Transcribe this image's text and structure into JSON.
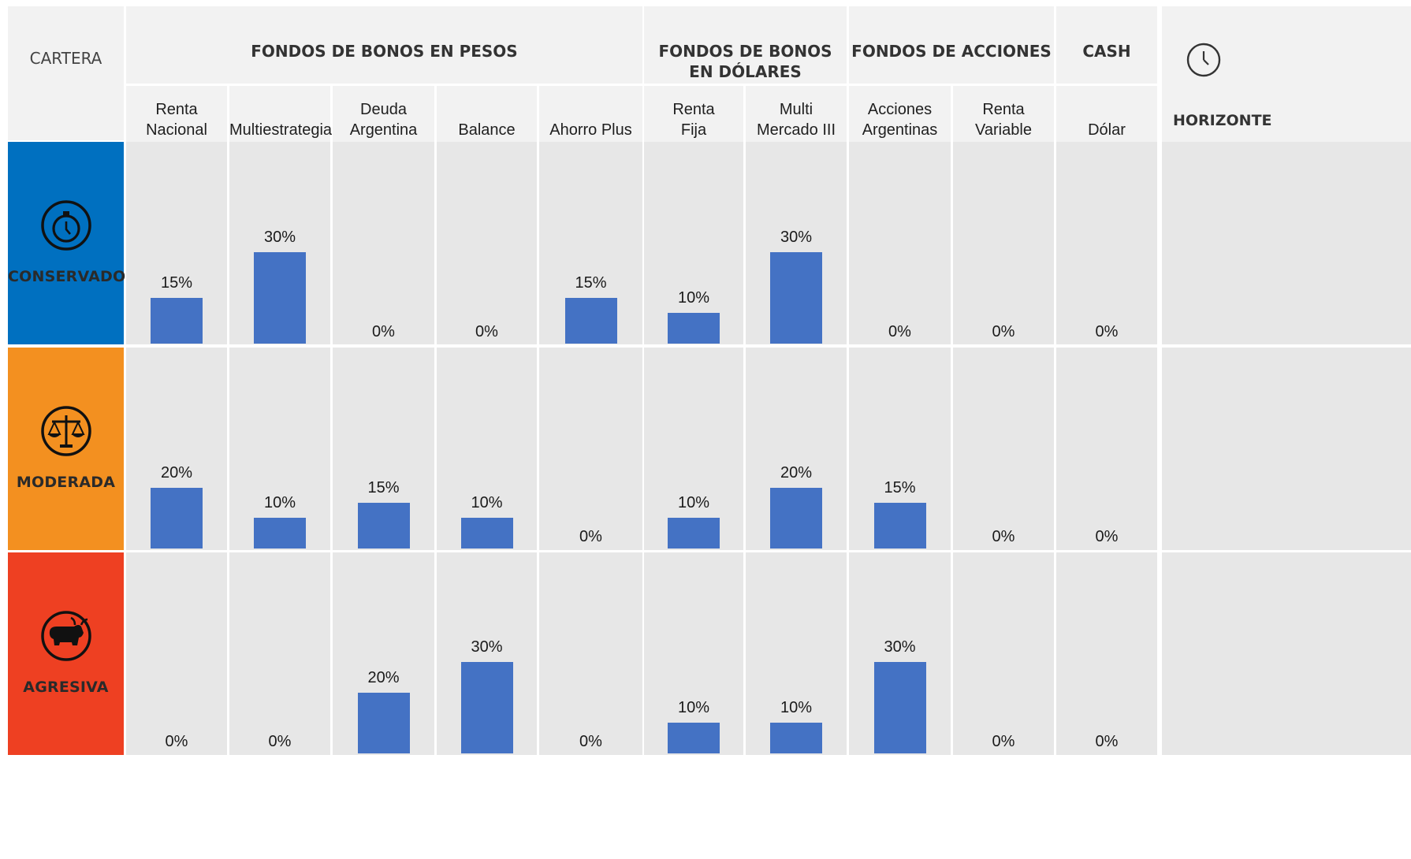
{
  "header": {
    "cartera_label": "CARTERA",
    "horizonte_label": "HORIZONTE",
    "clock_icon": "clock-icon"
  },
  "groups": [
    {
      "label": "FONDOS DE BONOS EN PESOS"
    },
    {
      "label": "FONDOS DE BONOS\nEN DÓLARES"
    },
    {
      "label": "FONDOS DE ACCIONES"
    },
    {
      "label": "CASH"
    }
  ],
  "profiles": [
    {
      "name": "CONSERVADORA",
      "color": "#0070c0",
      "icon": "stopwatch-icon"
    },
    {
      "name": "MODERADA",
      "color": "#f39020",
      "icon": "scales-icon"
    },
    {
      "name": "AGRESIVA",
      "color": "#ee4022",
      "icon": "bull-icon"
    }
  ],
  "chart_data": {
    "type": "bar",
    "categories": [
      "Renta\nNacional",
      "Multiestrategia",
      "Deuda\nArgentina",
      "Balance",
      "Ahorro Plus",
      "Renta\nFija",
      "Multi\nMercado III",
      "Acciones\nArgentinas",
      "Renta\nVariable",
      "Dólar"
    ],
    "series": [
      {
        "name": "CONSERVADORA",
        "values": [
          15,
          30,
          0,
          0,
          15,
          10,
          30,
          0,
          0,
          0
        ],
        "labels": [
          "15%",
          "30%",
          "0%",
          "0%",
          "15%",
          "10%",
          "30%",
          "0%",
          "0%",
          "0%"
        ]
      },
      {
        "name": "MODERADA",
        "values": [
          20,
          10,
          15,
          10,
          0,
          10,
          20,
          15,
          0,
          0
        ],
        "labels": [
          "20%",
          "10%",
          "15%",
          "10%",
          "0%",
          "10%",
          "20%",
          "15%",
          "0%",
          "0%"
        ]
      },
      {
        "name": "AGRESIVA",
        "values": [
          0,
          0,
          20,
          30,
          0,
          10,
          10,
          30,
          0,
          0
        ],
        "labels": [
          "0%",
          "0%",
          "20%",
          "30%",
          "0%",
          "10%",
          "10%",
          "30%",
          "0%",
          "0%"
        ]
      }
    ],
    "bar_color": "#4472c4",
    "ylim": [
      0,
      30
    ]
  }
}
